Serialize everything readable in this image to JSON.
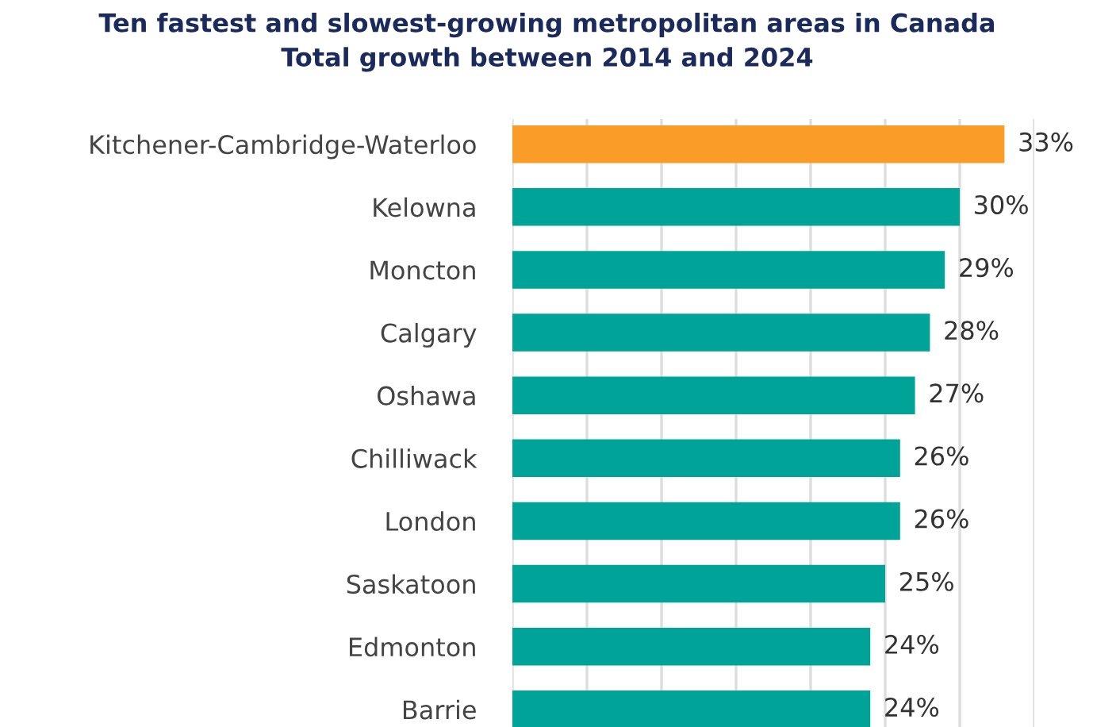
{
  "chart_data": {
    "type": "bar",
    "orientation": "horizontal",
    "title": "Ten fastest and slowest-growing metropolitan areas in Canada\nTotal growth between 2014 and 2024",
    "categories": [
      "Kitchener-Cambridge-Waterloo",
      "Kelowna",
      "Moncton",
      "Calgary",
      "Oshawa",
      "Chilliwack",
      "London",
      "Saskatoon",
      "Edmonton",
      "Barrie"
    ],
    "values": [
      33,
      30,
      29,
      28,
      27,
      26,
      26,
      25,
      24,
      24
    ],
    "colors": [
      "#f99d28",
      "#00a398",
      "#00a398",
      "#00a398",
      "#00a398",
      "#00a398",
      "#00a398",
      "#00a398",
      "#00a398",
      "#00a398"
    ],
    "value_labels": [
      "33%",
      "30%",
      "29%",
      "28%",
      "27%",
      "26%",
      "26%",
      "25%",
      "24%",
      "24%"
    ],
    "xlim": [
      0,
      35
    ],
    "xticks": [
      {
        "value": 0,
        "label": null
      },
      {
        "value": 5,
        "label": null
      },
      {
        "value": 10,
        "label": null
      },
      {
        "value": 15,
        "label": null
      },
      {
        "value": 20,
        "label": null
      },
      {
        "value": 25,
        "label": null
      },
      {
        "value": 30,
        "label": null
      },
      {
        "value": 35,
        "label": null
      }
    ],
    "tick_labels": "y",
    "grid": "x",
    "legend": false
  }
}
